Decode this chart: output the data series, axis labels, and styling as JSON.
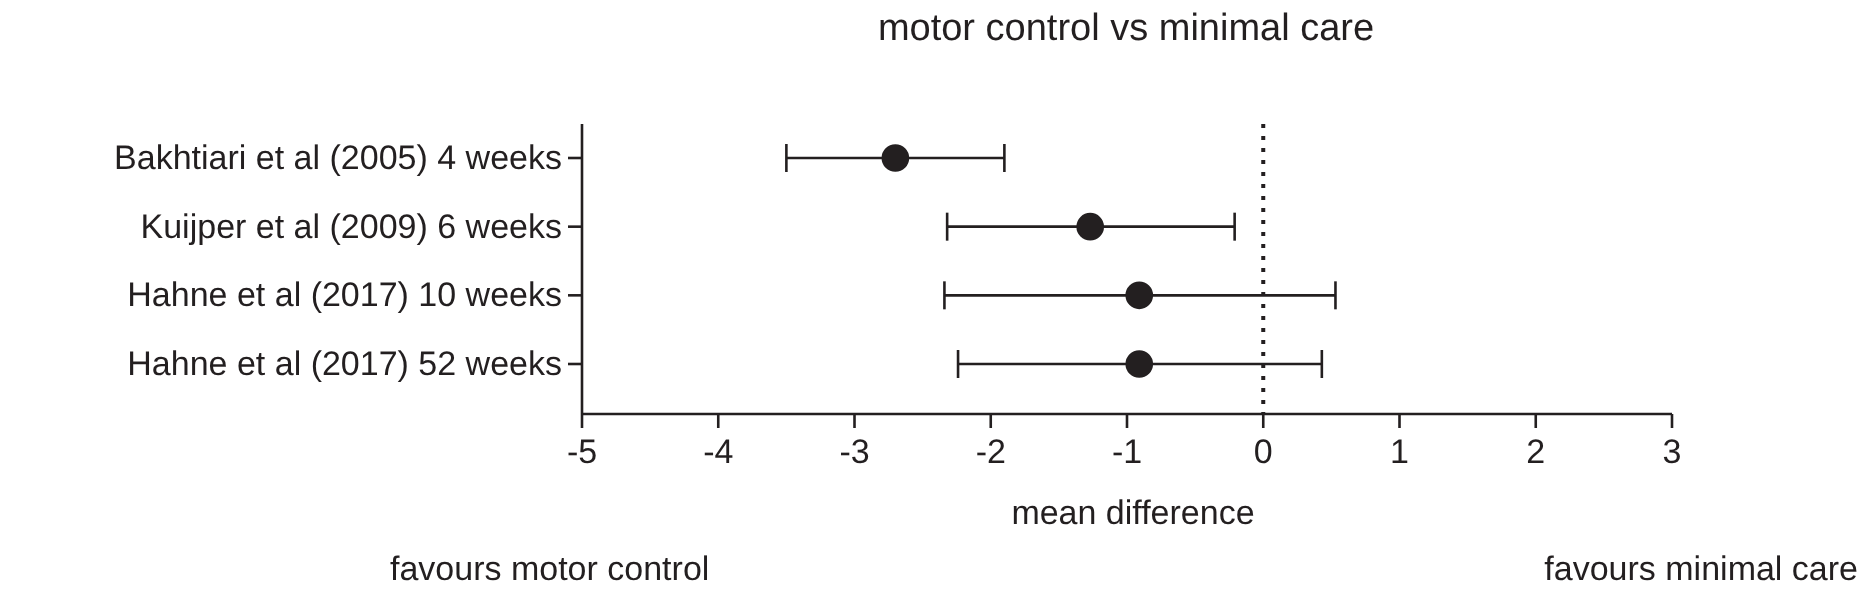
{
  "chart_data": {
    "type": "scatter",
    "title": "motor control vs minimal care",
    "xlabel": "mean difference",
    "orientation": "horizontal",
    "categories": [
      "Bakhtiari et al (2005) 4 weeks",
      "Kuijper et al (2009) 6 weeks",
      "Hahne et al (2017) 10 weeks",
      "Hahne et al (2017) 52 weeks"
    ],
    "values": [
      -2.7,
      -1.27,
      -0.91,
      -0.91
    ],
    "errors": [
      0.8,
      [
        -2.32,
        -0.21
      ],
      [
        -2.34,
        0.53
      ],
      [
        -2.24,
        0.43
      ]
    ],
    "color": "#231f20",
    "marker": "circle",
    "xlim": [
      -5,
      3
    ],
    "xticks": [
      -5,
      -4,
      -3,
      -2,
      -1,
      0,
      1,
      2,
      3
    ],
    "ref_lines": [
      {
        "axis": "x",
        "value": 0,
        "line_style": "dotted",
        "color": "#231f20"
      }
    ],
    "annotations": [
      "favours motor control",
      "favours minimal care"
    ],
    "grid": false
  }
}
